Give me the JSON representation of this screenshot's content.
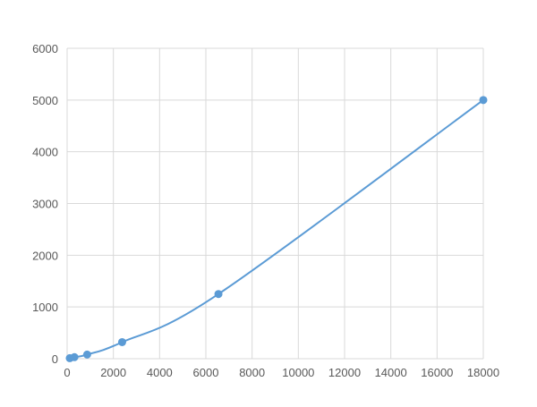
{
  "chart_data": {
    "type": "line",
    "title": "",
    "xlabel": "",
    "ylabel": "",
    "xlim": [
      0,
      18000
    ],
    "ylim": [
      0,
      6000
    ],
    "xticks": [
      0,
      2000,
      4000,
      6000,
      8000,
      10000,
      12000,
      14000,
      16000,
      18000
    ],
    "yticks": [
      0,
      1000,
      2000,
      3000,
      4000,
      5000,
      6000
    ],
    "grid": true,
    "legend": "none",
    "series": [
      {
        "x": [
          114,
          315,
          866,
          2380,
          6545,
          18000
        ],
        "y": [
          10,
          30,
          80,
          320,
          1250,
          5000
        ],
        "color": "#5b9bd5",
        "markers": true,
        "smooth": true
      }
    ]
  }
}
